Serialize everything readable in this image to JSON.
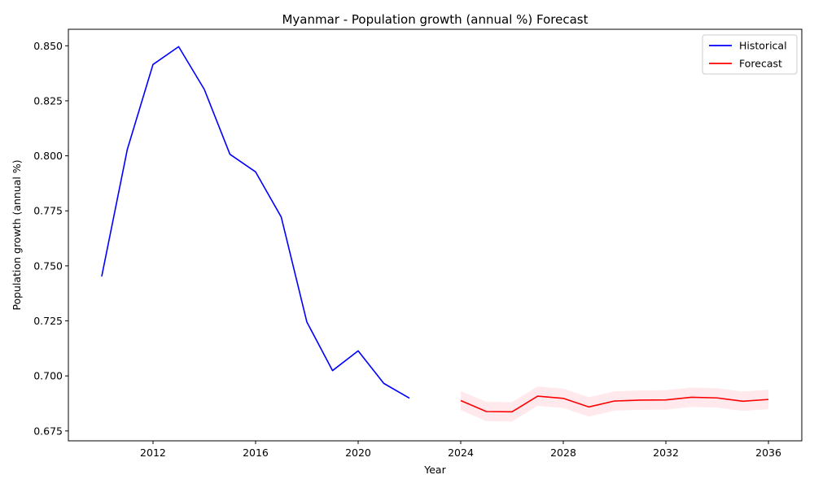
{
  "chart_data": {
    "type": "line",
    "title": "Myanmar - Population growth (annual %) Forecast",
    "xlabel": "Year",
    "ylabel": "Population growth (annual %)",
    "xlim": [
      2008.7,
      2037.3
    ],
    "ylim": [
      0.6705,
      0.8575
    ],
    "x_ticks": [
      2012,
      2016,
      2020,
      2024,
      2028,
      2032,
      2036
    ],
    "y_ticks": [
      0.675,
      0.7,
      0.725,
      0.75,
      0.775,
      0.8,
      0.825,
      0.85
    ],
    "grid": false,
    "legend_position": "top-right",
    "series": [
      {
        "name": "Historical",
        "color": "#0000ff",
        "x": [
          2010,
          2011,
          2012,
          2013,
          2014,
          2015,
          2016,
          2017,
          2018,
          2019,
          2020,
          2021,
          2022
        ],
        "y": [
          0.7452,
          0.803,
          0.8415,
          0.8496,
          0.8302,
          0.8007,
          0.7927,
          0.7722,
          0.7245,
          0.7024,
          0.7114,
          0.6966,
          0.6899
        ]
      },
      {
        "name": "Forecast",
        "color": "#ff0000",
        "band_color": "#ffc0cb",
        "x": [
          2024,
          2025,
          2026,
          2027,
          2028,
          2029,
          2030,
          2031,
          2032,
          2033,
          2034,
          2035,
          2036
        ],
        "y": [
          0.6888,
          0.6838,
          0.6837,
          0.6908,
          0.6898,
          0.6859,
          0.6886,
          0.689,
          0.6891,
          0.6903,
          0.69,
          0.6885,
          0.6893
        ],
        "lower": [
          0.6845,
          0.6794,
          0.6793,
          0.6864,
          0.6854,
          0.6815,
          0.6842,
          0.6846,
          0.6847,
          0.6859,
          0.6856,
          0.6841,
          0.6849
        ],
        "upper": [
          0.6931,
          0.6882,
          0.6881,
          0.6952,
          0.6942,
          0.6903,
          0.693,
          0.6934,
          0.6935,
          0.6947,
          0.6944,
          0.6929,
          0.6937
        ]
      }
    ]
  }
}
